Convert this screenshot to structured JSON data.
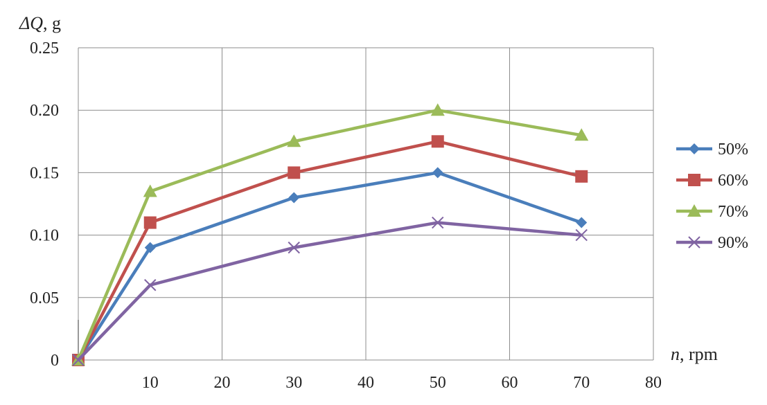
{
  "chart_data": {
    "type": "line",
    "ylabel_symbol": "ΔQ",
    "ylabel_rest": ", g",
    "xlabel_symbol": "n",
    "xlabel_rest": ", rpm",
    "xlim": [
      0,
      80
    ],
    "ylim": [
      0,
      0.25
    ],
    "x_ticks": [
      "10",
      "20",
      "30",
      "40",
      "50",
      "60",
      "70",
      "80"
    ],
    "x_tick_values": [
      10,
      20,
      30,
      40,
      50,
      60,
      70,
      80
    ],
    "y_ticks": [
      "0",
      "0.05",
      "0.10",
      "0.15",
      "0.20",
      "0.25"
    ],
    "y_tick_values": [
      0,
      0.05,
      0.1,
      0.15,
      0.2,
      0.25
    ],
    "grid": true,
    "legend_position": "right",
    "x": [
      0,
      10,
      30,
      50,
      70
    ],
    "series": [
      {
        "name": "50%",
        "color": "#4a7ebb",
        "marker": "diamond",
        "values": [
          0,
          0.09,
          0.13,
          0.15,
          0.11
        ]
      },
      {
        "name": "60%",
        "color": "#c0504d",
        "marker": "square",
        "values": [
          0,
          0.11,
          0.15,
          0.175,
          0.147
        ]
      },
      {
        "name": "70%",
        "color": "#9bbb59",
        "marker": "triangle",
        "values": [
          0,
          0.135,
          0.175,
          0.2,
          0.18
        ]
      },
      {
        "name": "90%",
        "color": "#8064a2",
        "marker": "x",
        "values": [
          0,
          0.06,
          0.09,
          0.11,
          0.1
        ]
      }
    ]
  }
}
